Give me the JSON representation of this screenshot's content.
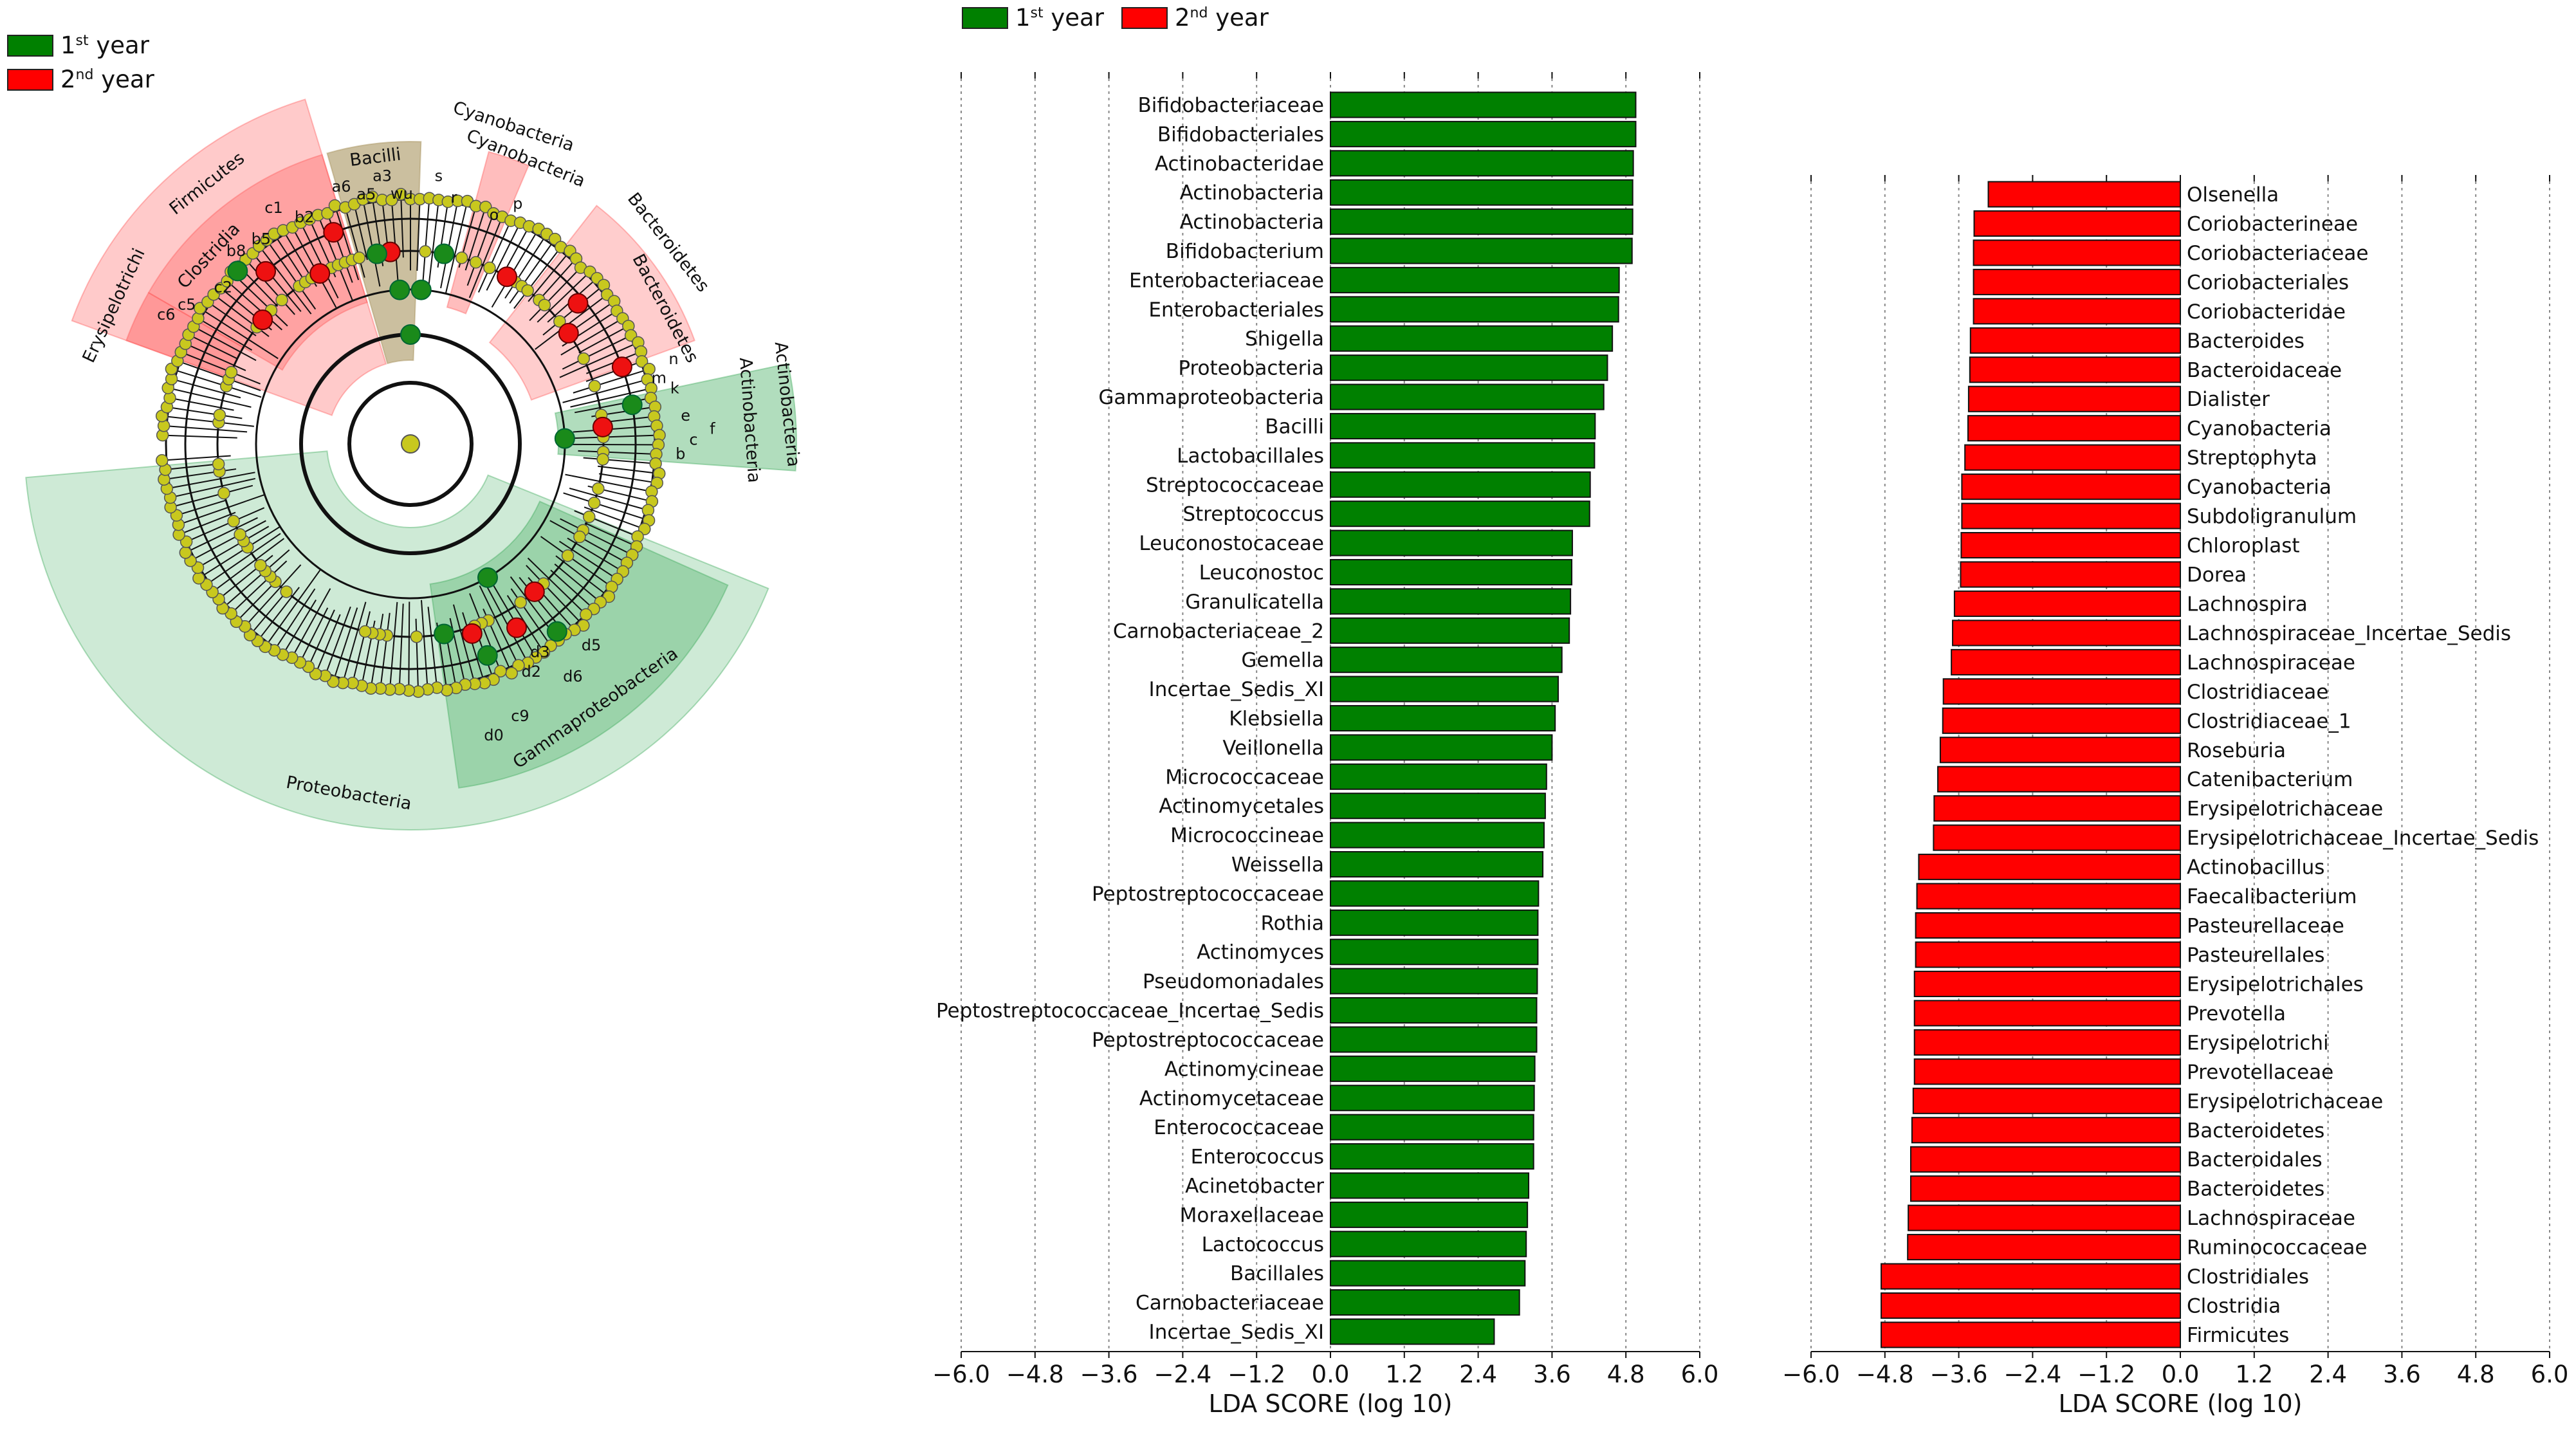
{
  "cladogram": {
    "legend": [
      {
        "base": "1",
        "sup": "st",
        "rest": " year",
        "color": "#008000"
      },
      {
        "base": "2",
        "sup": "nd",
        "rest": " year",
        "color": "#ff0000"
      }
    ],
    "clades": [
      {
        "label": "Firmicutes",
        "group": "2nd year"
      },
      {
        "label": "Bacilli",
        "group": "1st year"
      },
      {
        "label": "Clostridia",
        "group": "2nd year"
      },
      {
        "label": "Erysipelotrichi",
        "group": "2nd year"
      },
      {
        "label": "Cyanobacteria",
        "group": "2nd year"
      },
      {
        "label": "Cyanobacteria",
        "group": "2nd year"
      },
      {
        "label": "Bacteroidetes",
        "group": "2nd year"
      },
      {
        "label": "Bacteroidetes",
        "group": "2nd year"
      },
      {
        "label": "Actinobacteria",
        "group": "1st year"
      },
      {
        "label": "Actinobacteria",
        "group": "1st year"
      },
      {
        "label": "Proteobacteria",
        "group": "1st year"
      },
      {
        "label": "Gammaproteobacteria",
        "group": "1st year"
      }
    ],
    "node_letters": [
      "a3",
      "s",
      "r",
      "wu",
      "a6",
      "a5",
      "c1",
      "b2",
      "b8",
      "b5",
      "c6",
      "c5",
      "c2",
      "p",
      "o",
      "n",
      "m",
      "k",
      "f",
      "c",
      "e",
      "b",
      "d5",
      "d6",
      "c9",
      "d0",
      "d2",
      "d3"
    ]
  },
  "chart_data": [
    {
      "type": "bar",
      "orientation": "horizontal",
      "series_name": "1st year",
      "color": "#008000",
      "legend": [
        {
          "base": "1",
          "sup": "st",
          "rest": " year",
          "color": "#008000"
        },
        {
          "base": "2",
          "sup": "nd",
          "rest": " year",
          "color": "#ff0000"
        }
      ],
      "xlabel": "LDA SCORE (log 10)",
      "xlim": [
        -6.0,
        6.0
      ],
      "xticks": [
        "−6.0",
        "−4.8",
        "−3.6",
        "−2.4",
        "−1.2",
        "0.0",
        "1.2",
        "2.4",
        "3.6",
        "4.8",
        "6.0"
      ],
      "grid": true,
      "categories": [
        "Bifidobacteriaceae",
        "Bifidobacteriales",
        "Actinobacteridae",
        "Actinobacteria",
        "Actinobacteria",
        "Bifidobacterium",
        "Enterobacteriaceae",
        "Enterobacteriales",
        "Shigella",
        "Proteobacteria",
        "Gammaproteobacteria",
        "Bacilli",
        "Lactobacillales",
        "Streptococcaceae",
        "Streptococcus",
        "Leuconostocaceae",
        "Leuconostoc",
        "Granulicatella",
        "Carnobacteriaceae_2",
        "Gemella",
        "Incertae_Sedis_XI",
        "Klebsiella",
        "Veillonella",
        "Micrococcaceae",
        "Actinomycetales",
        "Micrococcineae",
        "Weissella",
        "Peptostreptococcaceae",
        "Rothia",
        "Actinomyces",
        "Pseudomonadales",
        "Peptostreptococcaceae_Incertae_Sedis",
        "Peptostreptococcaceae",
        "Actinomycineae",
        "Actinomycetaceae",
        "Enterococcaceae",
        "Enterococcus",
        "Acinetobacter",
        "Moraxellaceae",
        "Lactococcus",
        "Bacillales",
        "Carnobacteriaceae",
        "Incertae_Sedis_XI"
      ],
      "values": [
        4.96,
        4.96,
        4.92,
        4.91,
        4.91,
        4.9,
        4.69,
        4.68,
        4.58,
        4.5,
        4.44,
        4.3,
        4.29,
        4.22,
        4.21,
        3.93,
        3.92,
        3.9,
        3.88,
        3.76,
        3.7,
        3.65,
        3.6,
        3.51,
        3.49,
        3.47,
        3.45,
        3.38,
        3.37,
        3.37,
        3.36,
        3.35,
        3.35,
        3.32,
        3.31,
        3.3,
        3.3,
        3.22,
        3.2,
        3.18,
        3.16,
        3.07,
        2.66
      ]
    },
    {
      "type": "bar",
      "orientation": "horizontal",
      "series_name": "2nd year",
      "color": "#ff0000",
      "xlabel": "LDA SCORE (log 10)",
      "xlim": [
        -6.0,
        6.0
      ],
      "xticks": [
        "−6.0",
        "−4.8",
        "−3.6",
        "−2.4",
        "−1.2",
        "0.0",
        "1.2",
        "2.4",
        "3.6",
        "4.8",
        "6.0"
      ],
      "grid": true,
      "categories": [
        "Olsenella",
        "Coriobacterineae",
        "Coriobacteriaceae",
        "Coriobacteriales",
        "Coriobacteridae",
        "Bacteroides",
        "Bacteroidaceae",
        "Dialister",
        "Cyanobacteria",
        "Streptophyta",
        "Cyanobacteria",
        "Subdoligranulum",
        "Chloroplast",
        "Dorea",
        "Lachnospira",
        "Lachnospiraceae_Incertae_Sedis",
        "Lachnospiraceae",
        "Clostridiaceae",
        "Clostridiaceae_1",
        "Roseburia",
        "Catenibacterium",
        "Erysipelotrichaceae",
        "Erysipelotrichaceae_Incertae_Sedis",
        "Actinobacillus",
        "Faecalibacterium",
        "Pasteurellaceae",
        "Pasteurellales",
        "Erysipelotrichales",
        "Prevotella",
        "Erysipelotrichi",
        "Prevotellaceae",
        "Erysipelotrichaceae",
        "Bacteroidetes",
        "Bacteroidales",
        "Bacteroidetes",
        "Lachnospiraceae",
        "Ruminococcaceae",
        "Clostridiales",
        "Clostridia",
        "Firmicutes"
      ],
      "values": [
        -3.12,
        -3.35,
        -3.36,
        -3.36,
        -3.36,
        -3.41,
        -3.42,
        -3.44,
        -3.45,
        -3.5,
        -3.55,
        -3.55,
        -3.56,
        -3.57,
        -3.67,
        -3.7,
        -3.72,
        -3.85,
        -3.86,
        -3.9,
        -3.94,
        -4.0,
        -4.01,
        -4.25,
        -4.28,
        -4.3,
        -4.3,
        -4.32,
        -4.32,
        -4.32,
        -4.32,
        -4.34,
        -4.36,
        -4.38,
        -4.38,
        -4.42,
        -4.43,
        -4.86,
        -4.86,
        -4.86
      ]
    }
  ]
}
